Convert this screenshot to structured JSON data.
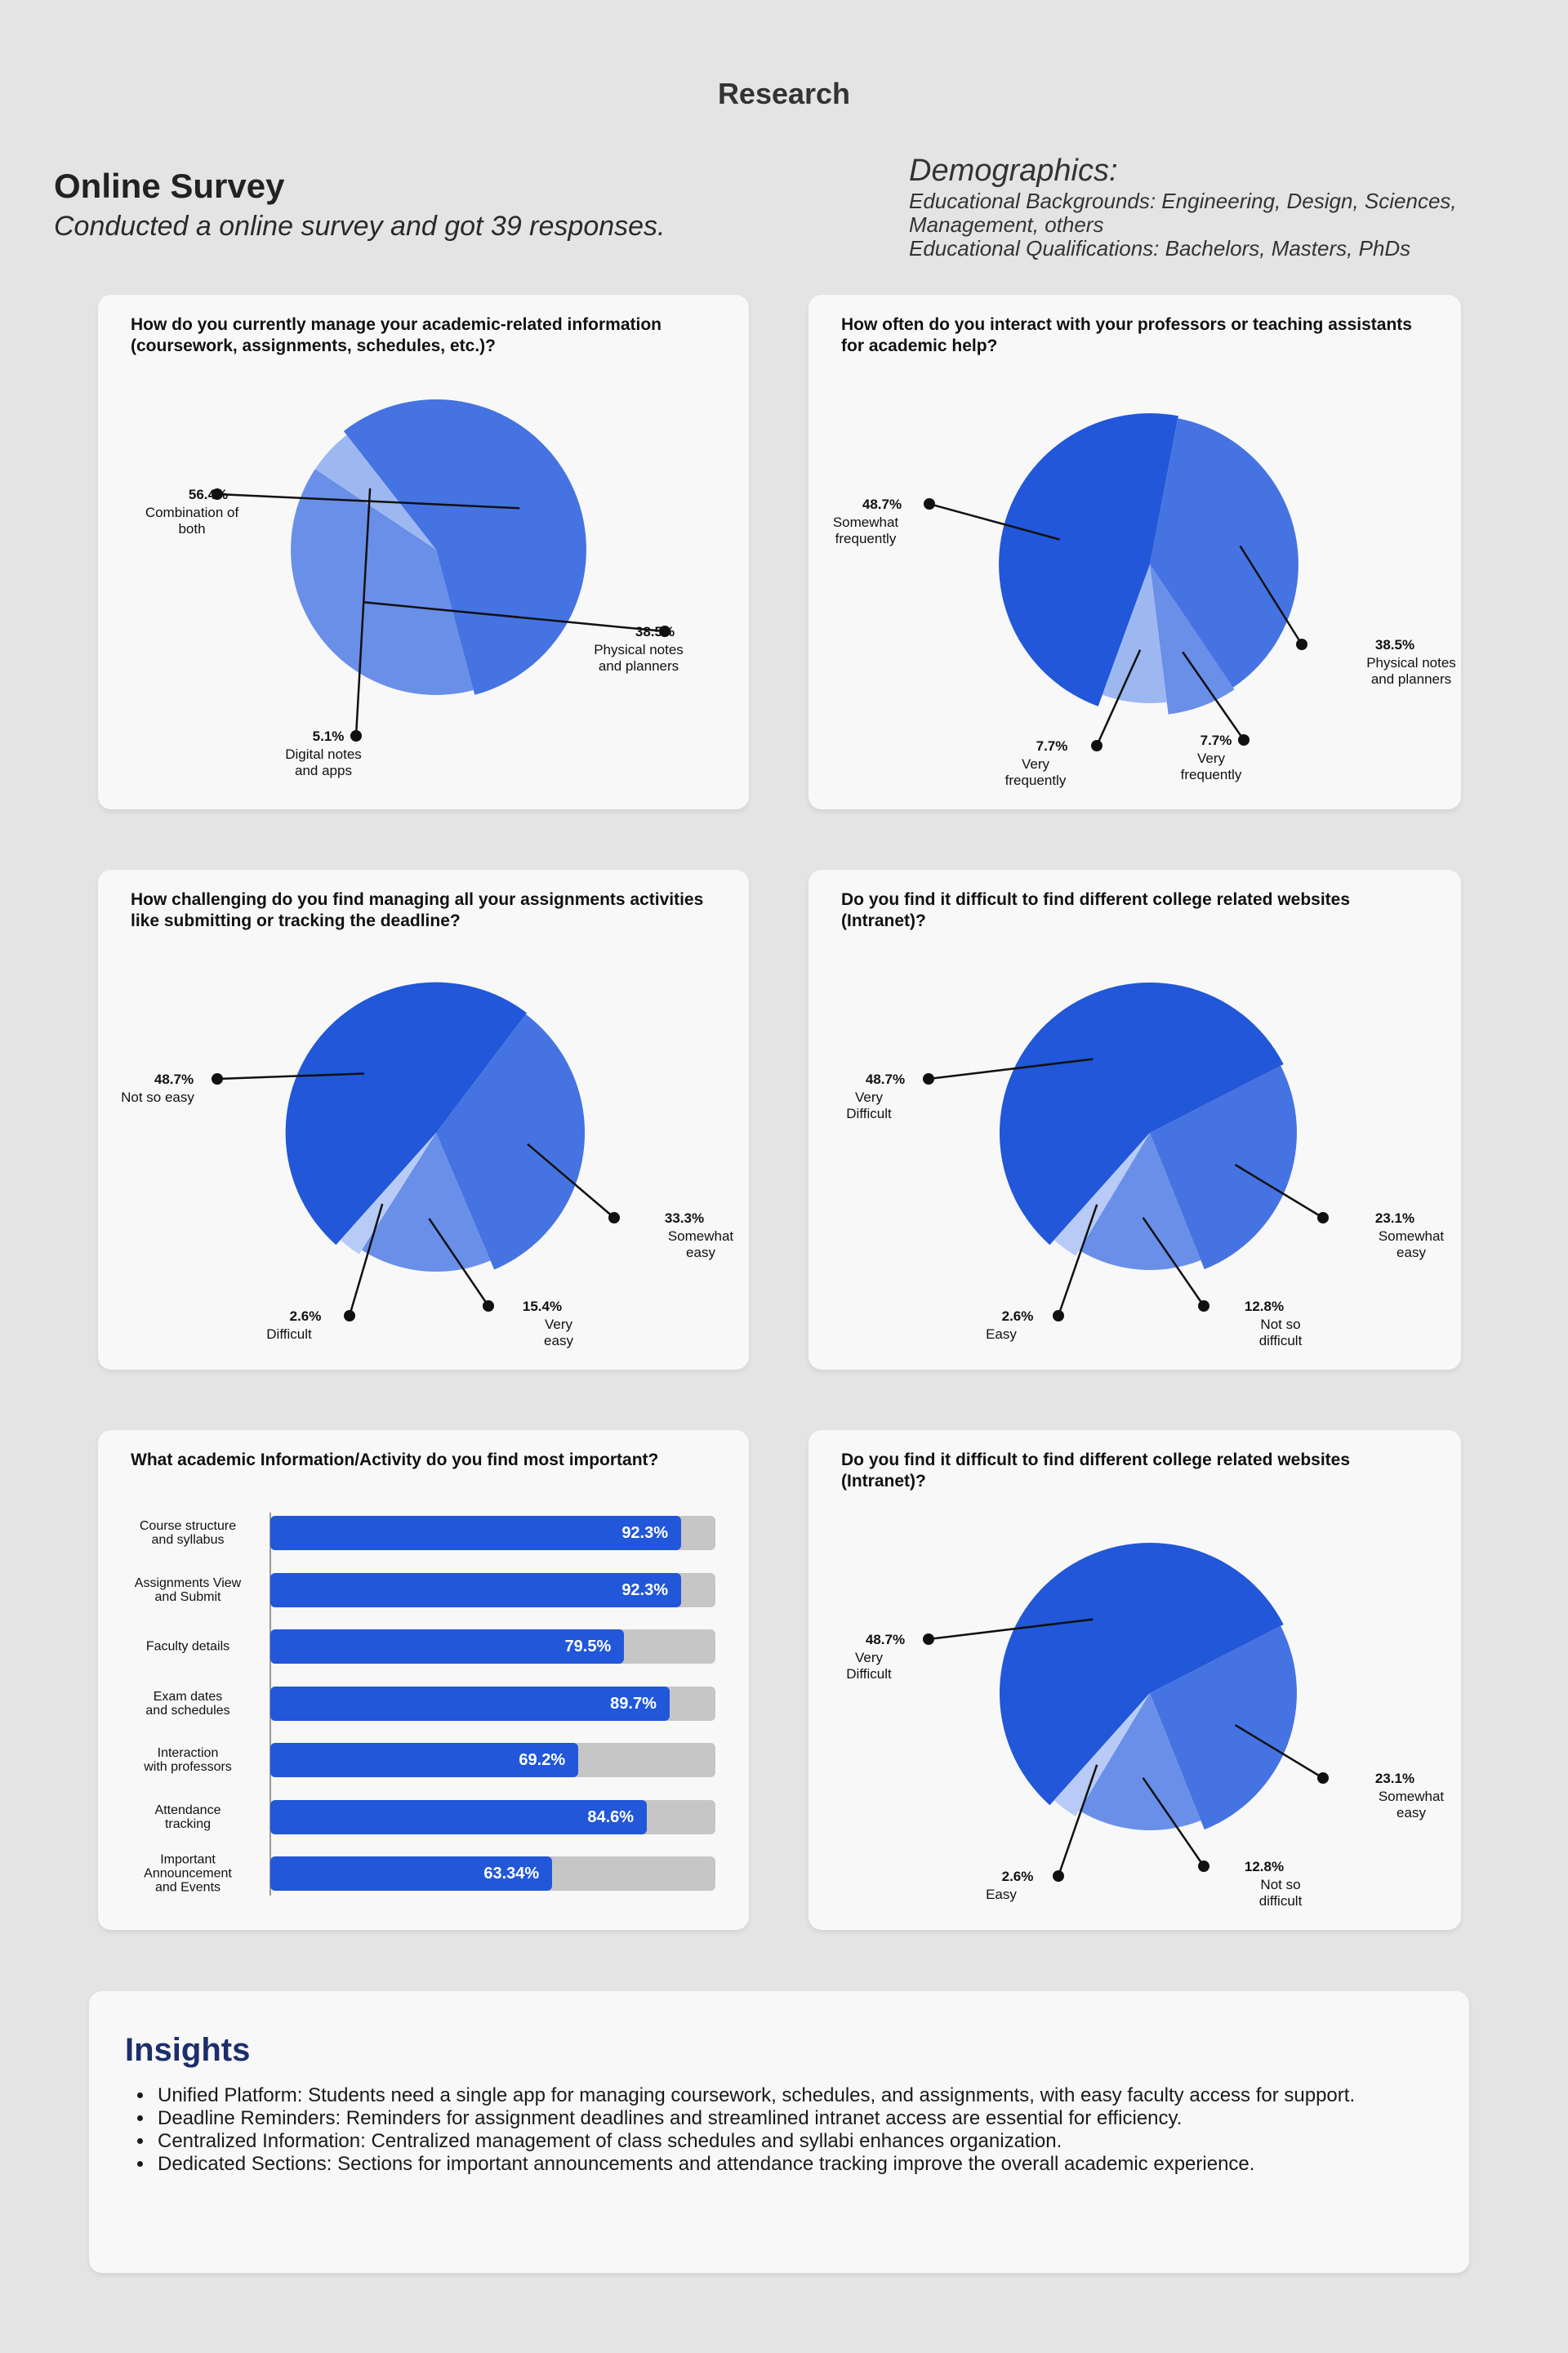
{
  "page": {
    "title": "Research",
    "survey_title": "Online Survey",
    "survey_subtitle": "Conducted a online survey and got 39 responses.",
    "demographics": {
      "title": "Demographics:",
      "lines": [
        "Educational Backgrounds: Engineering, Design, Sciences,",
        "Management, others",
        "Educational Qualifications: Bachelors, Masters, PhDs"
      ]
    }
  },
  "colors": {
    "dark_blue": "#2157d8",
    "mid_blue": "#4573e1",
    "light_blue": "#6a8fe9",
    "pale_blue": "#9db7f1",
    "palest_blue": "#b7cbf6",
    "bar_track": "#c6c6c6"
  },
  "chart_data": [
    {
      "type": "pie",
      "title": "How do you currently manage your academic-related information (coursework, assignments, schedules, etc.)?",
      "slices": [
        {
          "value": 56.4,
          "value_label": "56.4%",
          "label": [
            "Combination of",
            "both"
          ],
          "color": "#4573e1"
        },
        {
          "value": 38.5,
          "value_label": "38.5%",
          "label": [
            "Physical notes",
            "and planners"
          ],
          "color": "#6a8fe9"
        },
        {
          "value": 5.1,
          "value_label": "5.1%",
          "label": [
            "Digital notes",
            "and apps"
          ],
          "color": "#9db7f1"
        }
      ]
    },
    {
      "type": "pie",
      "title": "How often do you interact with your professors or teaching assistants for academic help?",
      "slices": [
        {
          "value": 48.7,
          "value_label": "48.7%",
          "label": [
            "Somewhat",
            "frequently"
          ],
          "color": "#2157d8"
        },
        {
          "value": 38.5,
          "value_label": "38.5%",
          "label": [
            "Physical notes",
            "and planners"
          ],
          "color": "#4573e1"
        },
        {
          "value": 7.7,
          "value_label": "7.7%",
          "label": [
            "Very",
            "frequently"
          ],
          "color": "#6a8fe9"
        },
        {
          "value": 7.7,
          "value_label": "7.7%",
          "label": [
            "Very",
            "frequently"
          ],
          "color": "#9db7f1"
        }
      ]
    },
    {
      "type": "pie",
      "title": "How challenging do you find managing all your assignments activities like submitting or tracking the deadline?",
      "slices": [
        {
          "value": 48.7,
          "value_label": "48.7%",
          "label": [
            "Not so easy"
          ],
          "color": "#2157d8"
        },
        {
          "value": 33.3,
          "value_label": "33.3%",
          "label": [
            "Somewhat",
            "easy"
          ],
          "color": "#4573e1"
        },
        {
          "value": 15.4,
          "value_label": "15.4%",
          "label": [
            "Very",
            "easy"
          ],
          "color": "#6a8fe9"
        },
        {
          "value": 2.6,
          "value_label": "2.6%",
          "label": [
            "Difficult"
          ],
          "color": "#b7cbf6"
        }
      ]
    },
    {
      "type": "pie",
      "title": "Do you find it difficult to find different college related websites (Intranet)?",
      "slices": [
        {
          "value": 48.7,
          "value_label": "48.7%",
          "label": [
            "Very",
            "Difficult"
          ],
          "color": "#2157d8"
        },
        {
          "value": 23.1,
          "value_label": "23.1%",
          "label": [
            "Somewhat",
            "easy"
          ],
          "color": "#4573e1"
        },
        {
          "value": 12.8,
          "value_label": "12.8%",
          "label": [
            "Not so",
            "difficult"
          ],
          "color": "#6a8fe9"
        },
        {
          "value": 2.6,
          "value_label": "2.6%",
          "label": [
            "Easy"
          ],
          "color": "#b7cbf6"
        }
      ]
    },
    {
      "type": "bar",
      "orientation": "horizontal",
      "title": "What academic Information/Activity do you find most important?",
      "categories": [
        [
          "Course structure",
          "and syllabus"
        ],
        [
          "Assignments View",
          "and Submit"
        ],
        [
          "Faculty details"
        ],
        [
          "Exam dates",
          "and schedules"
        ],
        [
          "Interaction",
          "with professors"
        ],
        [
          "Attendance",
          "tracking"
        ],
        [
          "Important",
          "Announcement",
          "and Events"
        ]
      ],
      "values": [
        92.3,
        92.3,
        79.5,
        89.7,
        69.2,
        84.6,
        63.34
      ],
      "value_labels": [
        "92.3%",
        "92.3%",
        "79.5%",
        "89.7%",
        "69.2%",
        "84.6%",
        "63.34%"
      ],
      "xlim": [
        0,
        100
      ]
    },
    {
      "type": "pie",
      "title": "Do you find it difficult to find different college related websites (Intranet)?",
      "slices": [
        {
          "value": 48.7,
          "value_label": "48.7%",
          "label": [
            "Very",
            "Difficult"
          ],
          "color": "#2157d8"
        },
        {
          "value": 23.1,
          "value_label": "23.1%",
          "label": [
            "Somewhat",
            "easy"
          ],
          "color": "#4573e1"
        },
        {
          "value": 12.8,
          "value_label": "12.8%",
          "label": [
            "Not so",
            "difficult"
          ],
          "color": "#6a8fe9"
        },
        {
          "value": 2.6,
          "value_label": "2.6%",
          "label": [
            "Easy"
          ],
          "color": "#b7cbf6"
        }
      ]
    }
  ],
  "insights": {
    "title": "Insights",
    "items": [
      "Unified Platform: Students need a single app for managing coursework, schedules, and assignments, with easy faculty access for support.",
      "Deadline Reminders: Reminders for assignment deadlines and streamlined intranet access are essential for efficiency.",
      "Centralized Information: Centralized management of class schedules and syllabi enhances organization.",
      "Dedicated Sections: Sections for important announcements and attendance tracking improve the overall academic experience."
    ]
  }
}
